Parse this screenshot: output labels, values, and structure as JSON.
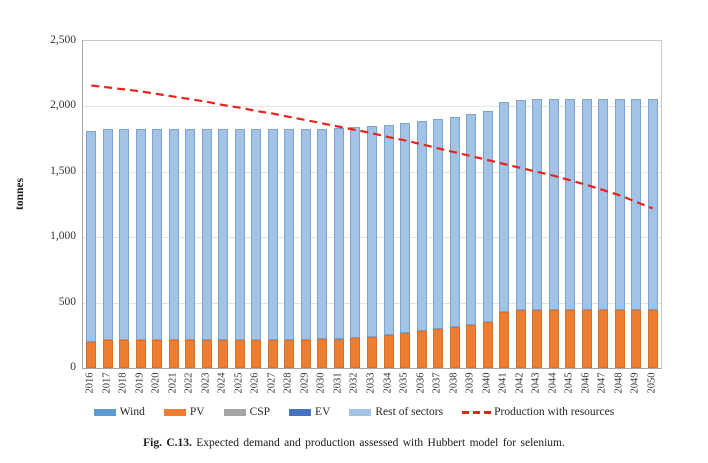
{
  "figure": {
    "caption_label": "Fig. C.13.",
    "caption_text": " Expected demand and production assessed with Hubbert model for selenium."
  },
  "chart_data": {
    "type": "bar",
    "stacked": true,
    "grid": true,
    "legend_position": "bottom",
    "ylabel": "tonnes",
    "ylim": [
      0,
      2500
    ],
    "ytick_labels": [
      "0",
      "500",
      "1,000",
      "1,500",
      "2,000",
      "2,500"
    ],
    "ytick_values": [
      0,
      500,
      1000,
      1500,
      2000,
      2500
    ],
    "categories": [
      2016,
      2017,
      2018,
      2019,
      2020,
      2021,
      2022,
      2023,
      2024,
      2025,
      2026,
      2027,
      2028,
      2029,
      2030,
      2031,
      2032,
      2033,
      2034,
      2035,
      2036,
      2037,
      2038,
      2039,
      2040,
      2041,
      2042,
      2043,
      2044,
      2045,
      2046,
      2047,
      2048,
      2049,
      2050
    ],
    "series": [
      {
        "name": "Wind",
        "color": "#5b9bd5",
        "css": "seg-wind",
        "values": [
          0,
          0,
          0,
          0,
          0,
          0,
          0,
          0,
          0,
          0,
          0,
          0,
          0,
          0,
          0,
          0,
          0,
          0,
          0,
          0,
          0,
          0,
          0,
          0,
          0,
          0,
          0,
          0,
          0,
          0,
          0,
          0,
          0,
          0,
          0
        ]
      },
      {
        "name": "PV",
        "color": "#ed7d31",
        "css": "seg-pv",
        "values": [
          200,
          215,
          215,
          215,
          215,
          215,
          215,
          215,
          215,
          215,
          215,
          215,
          215,
          215,
          220,
          225,
          230,
          240,
          250,
          265,
          280,
          295,
          310,
          330,
          355,
          425,
          440,
          445,
          445,
          445,
          445,
          445,
          445,
          445,
          445
        ]
      },
      {
        "name": "CSP",
        "color": "#a5a5a5",
        "css": "seg-csp",
        "values": [
          0,
          0,
          0,
          0,
          0,
          0,
          0,
          0,
          0,
          0,
          0,
          0,
          0,
          0,
          0,
          0,
          0,
          0,
          0,
          0,
          0,
          0,
          0,
          0,
          0,
          0,
          0,
          0,
          0,
          0,
          0,
          0,
          0,
          0,
          0
        ]
      },
      {
        "name": "EV",
        "color": "#4472c4",
        "css": "seg-ev",
        "values": [
          0,
          0,
          0,
          0,
          0,
          0,
          0,
          0,
          0,
          0,
          0,
          0,
          0,
          0,
          0,
          0,
          0,
          0,
          0,
          0,
          0,
          0,
          0,
          0,
          0,
          0,
          0,
          0,
          0,
          0,
          0,
          0,
          0,
          0,
          0
        ]
      },
      {
        "name": "Rest of sectors",
        "color": "#a3c3e6",
        "css": "seg-rest",
        "values": [
          1610,
          1610,
          1610,
          1610,
          1610,
          1610,
          1610,
          1610,
          1610,
          1610,
          1610,
          1610,
          1610,
          1610,
          1610,
          1610,
          1610,
          1610,
          1610,
          1610,
          1610,
          1610,
          1610,
          1610,
          1610,
          1610,
          1610,
          1610,
          1610,
          1610,
          1610,
          1610,
          1610,
          1610,
          1610
        ]
      }
    ],
    "line_series": {
      "name": "Production with resources",
      "color": "#e8231a",
      "style": "dashed",
      "values": [
        2160,
        2145,
        2130,
        2115,
        2095,
        2075,
        2055,
        2035,
        2010,
        1990,
        1965,
        1945,
        1920,
        1895,
        1870,
        1845,
        1820,
        1795,
        1765,
        1740,
        1710,
        1680,
        1650,
        1620,
        1590,
        1560,
        1530,
        1500,
        1470,
        1435,
        1400,
        1360,
        1320,
        1270,
        1220
      ]
    }
  }
}
